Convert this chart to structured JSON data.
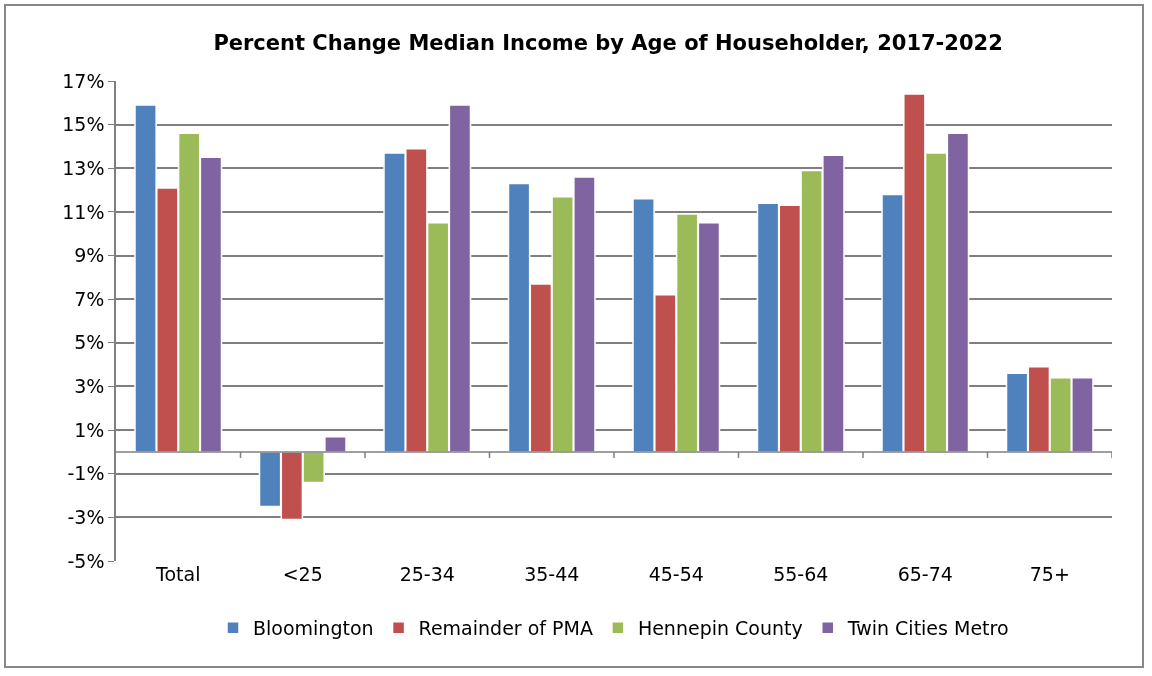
{
  "chart_data": {
    "type": "bar",
    "title": "Percent Change Median Income by Age of Householder, 2017-2022",
    "categories": [
      "Total",
      "<25",
      "25-34",
      "35-44",
      "45-54",
      "55-64",
      "65-74",
      "75+"
    ],
    "series": [
      {
        "name": "Bloomington",
        "color": "#4f81bd",
        "values": [
          15.9,
          -2.5,
          13.7,
          12.3,
          11.6,
          11.4,
          11.8,
          3.6
        ]
      },
      {
        "name": "Remainder of PMA",
        "color": "#c0504d",
        "values": [
          12.1,
          -3.1,
          13.9,
          7.7,
          7.2,
          11.3,
          16.4,
          3.9
        ]
      },
      {
        "name": "Hennepin County",
        "color": "#9bbb59",
        "values": [
          14.6,
          -1.4,
          10.5,
          11.7,
          10.9,
          12.9,
          13.7,
          3.4
        ]
      },
      {
        "name": "Twin Cities Metro",
        "color": "#8064a2",
        "values": [
          13.5,
          0.7,
          15.9,
          12.6,
          10.5,
          13.6,
          14.6,
          3.4
        ]
      }
    ],
    "ylim": [
      -5,
      17
    ],
    "yticks": [
      {
        "value": -5,
        "label": "-5%"
      },
      {
        "value": -3,
        "label": "-3%"
      },
      {
        "value": -1,
        "label": "-1%"
      },
      {
        "value": 1,
        "label": "1%"
      },
      {
        "value": 3,
        "label": "3%"
      },
      {
        "value": 5,
        "label": "5%"
      },
      {
        "value": 7,
        "label": "7%"
      },
      {
        "value": 9,
        "label": "9%"
      },
      {
        "value": 11,
        "label": "11%"
      },
      {
        "value": 13,
        "label": "13%"
      },
      {
        "value": 15,
        "label": "15%"
      },
      {
        "value": 17,
        "label": "17%"
      }
    ],
    "grid": "y",
    "legend": "bottom"
  }
}
